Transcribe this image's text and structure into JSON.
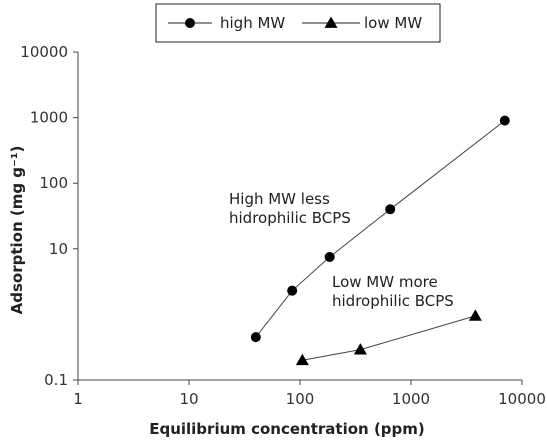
{
  "chart_data": {
    "type": "scatter",
    "title": "",
    "xlabel": "Equilibrium concentration (ppm)",
    "ylabel": "Adsorption (mg g⁻¹)",
    "xscale": "log",
    "yscale": "log",
    "xlim": [
      1,
      10000
    ],
    "ylim": [
      0.1,
      10000
    ],
    "xticks": [
      1,
      10,
      100,
      1000,
      10000
    ],
    "xtick_labels": [
      "1",
      "10",
      "100",
      "1000",
      "10000"
    ],
    "yticks": [
      0.1,
      10,
      100,
      1000,
      10000
    ],
    "ytick_labels": [
      "0.1",
      "10",
      "100",
      "1000",
      "10000"
    ],
    "grid": false,
    "legend_position": "top-center",
    "series": [
      {
        "name": "high MW",
        "marker": "circle",
        "color": "#000000",
        "x": [
          40,
          85,
          185,
          650,
          7000
        ],
        "y": [
          0.45,
          2.3,
          7.5,
          40,
          900
        ]
      },
      {
        "name": "low MW",
        "marker": "triangle",
        "color": "#000000",
        "x": [
          105,
          350,
          3800
        ],
        "y": [
          0.2,
          0.29,
          0.95
        ]
      }
    ],
    "annotations": [
      {
        "lines": [
          "High MW less",
          "hidrophilic BCPS"
        ]
      },
      {
        "lines": [
          "Low MW more",
          "hidrophilic BCPS"
        ]
      }
    ]
  }
}
